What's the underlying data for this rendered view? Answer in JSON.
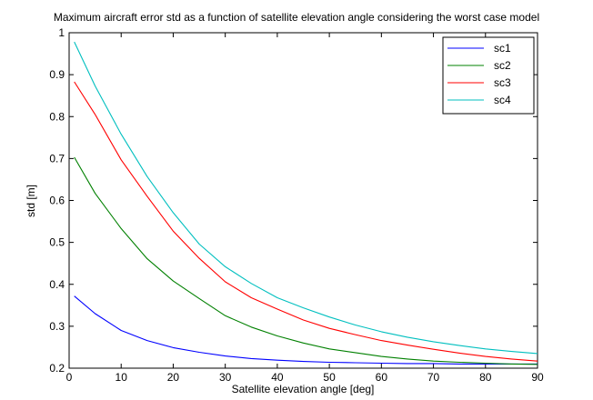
{
  "chart_data": {
    "type": "line",
    "title": "Maximum aircraft error std as a function of satellite elevation angle considering the worst case model",
    "xlabel": "Satellite elevation angle [deg]",
    "ylabel": "std [m]",
    "xlim": [
      0,
      90
    ],
    "ylim": [
      0.2,
      1
    ],
    "xticks": [
      "0",
      "10",
      "20",
      "30",
      "40",
      "50",
      "60",
      "70",
      "80",
      "90"
    ],
    "yticks": [
      "0.2",
      "0.3",
      "0.4",
      "0.5",
      "0.6",
      "0.7",
      "0.8",
      "0.9",
      "1"
    ],
    "grid": false,
    "legend_position": "top-right",
    "x": [
      1,
      5,
      10,
      15,
      20,
      25,
      30,
      35,
      40,
      45,
      50,
      55,
      60,
      65,
      70,
      75,
      80,
      85,
      90
    ],
    "series": [
      {
        "name": "sc1",
        "color": "#0000ff",
        "values": [
          0.372,
          0.33,
          0.29,
          0.266,
          0.249,
          0.238,
          0.229,
          0.223,
          0.219,
          0.216,
          0.214,
          0.213,
          0.212,
          0.211,
          0.211,
          0.21,
          0.21,
          0.21,
          0.21
        ]
      },
      {
        "name": "sc2",
        "color": "#008000",
        "values": [
          0.703,
          0.617,
          0.533,
          0.461,
          0.408,
          0.366,
          0.325,
          0.298,
          0.277,
          0.26,
          0.246,
          0.237,
          0.228,
          0.222,
          0.217,
          0.214,
          0.212,
          0.21,
          0.209
        ]
      },
      {
        "name": "sc3",
        "color": "#ff0000",
        "values": [
          0.883,
          0.805,
          0.697,
          0.61,
          0.527,
          0.462,
          0.406,
          0.368,
          0.341,
          0.315,
          0.295,
          0.28,
          0.266,
          0.255,
          0.245,
          0.236,
          0.228,
          0.222,
          0.217
        ]
      },
      {
        "name": "sc4",
        "color": "#00bfbf",
        "values": [
          0.978,
          0.873,
          0.758,
          0.657,
          0.571,
          0.496,
          0.442,
          0.402,
          0.368,
          0.344,
          0.322,
          0.303,
          0.287,
          0.274,
          0.263,
          0.254,
          0.246,
          0.24,
          0.235
        ]
      }
    ]
  }
}
